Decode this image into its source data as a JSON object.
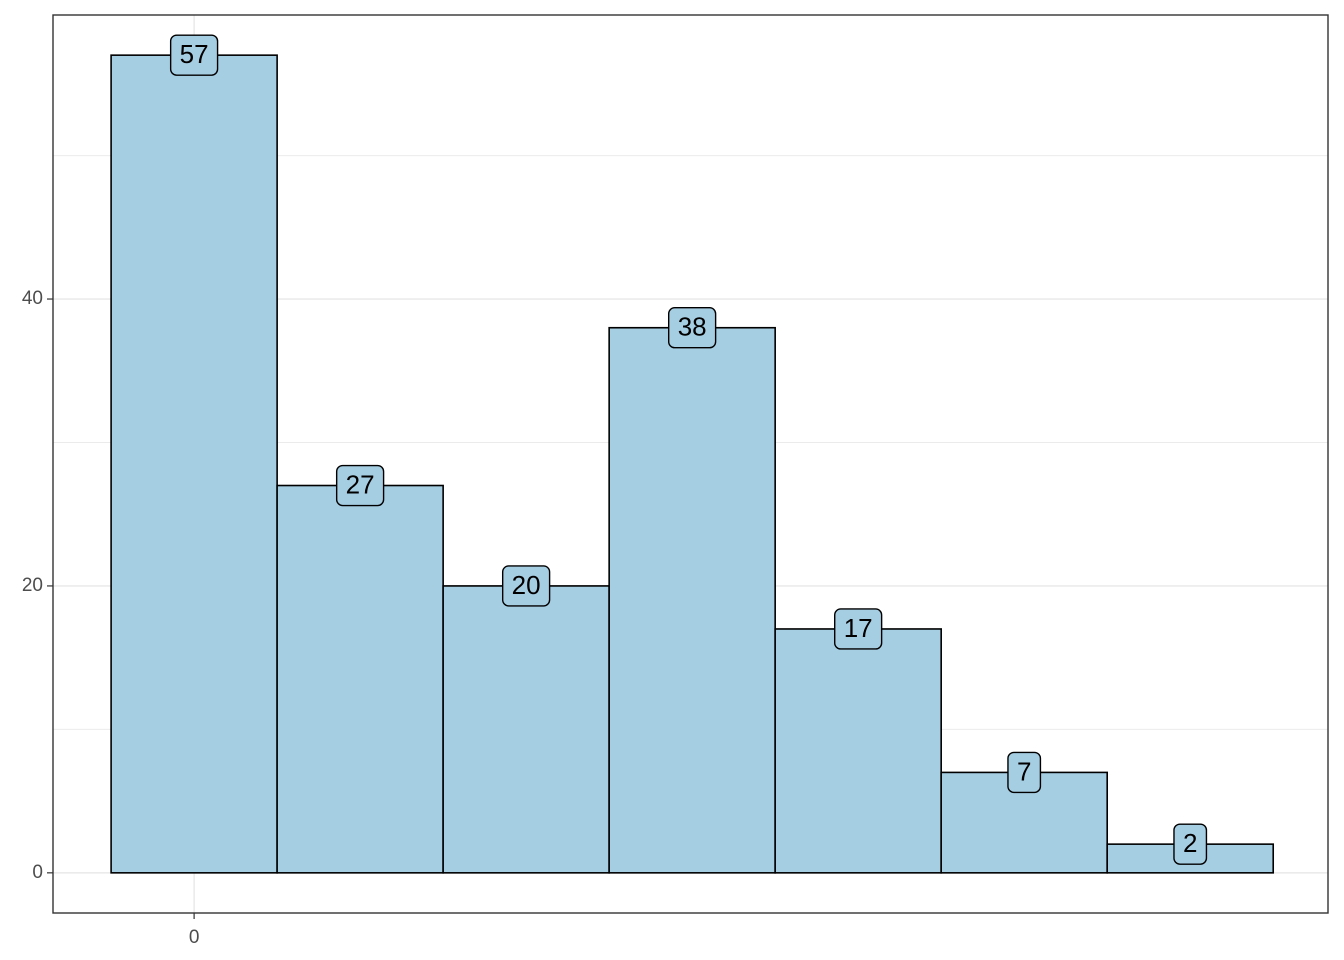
{
  "chart_data": {
    "type": "histogram",
    "bins": [
      -0.5,
      0.5,
      1.5,
      2.5,
      3.5,
      4.5,
      5.5,
      6.5
    ],
    "values": [
      57,
      27,
      20,
      38,
      17,
      7,
      2
    ],
    "color": "#a6cee3",
    "edge_color": "#000000",
    "xlim": [
      -0.85,
      6.83
    ],
    "xticks": [
      0
    ],
    "ylim": [
      -2.8,
      59.8
    ],
    "yticks": [
      0,
      20,
      40
    ],
    "minor_yticks": [
      10,
      30,
      50
    ],
    "grid": true,
    "data_labels": true
  }
}
